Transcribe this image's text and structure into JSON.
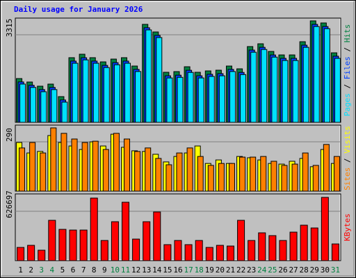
{
  "title": "Daily usage for January 2026",
  "legend_separator": " / ",
  "chart_data": [
    {
      "type": "bar",
      "ylim": [
        0,
        3315
      ],
      "yticks": [
        3315
      ],
      "grid": true,
      "series": [
        {
          "name": "Pages",
          "color": "#00e0ff",
          "values": [
            1250,
            1140,
            1000,
            1070,
            660,
            1930,
            2040,
            1930,
            1790,
            1880,
            1930,
            1660,
            3020,
            2770,
            1450,
            1470,
            1630,
            1450,
            1500,
            1520,
            1660,
            1560,
            2290,
            2380,
            2130,
            2020,
            2020,
            2450,
            3130,
            3060,
            2090
          ]
        },
        {
          "name": "Files",
          "color": "#0040ff",
          "values": [
            1320,
            1210,
            1070,
            1140,
            730,
            2000,
            2110,
            2000,
            1860,
            1950,
            2000,
            1730,
            3090,
            2840,
            1520,
            1540,
            1700,
            1520,
            1570,
            1590,
            1730,
            1630,
            2360,
            2450,
            2200,
            2090,
            2090,
            2520,
            3200,
            3130,
            2160
          ]
        },
        {
          "name": "Hits",
          "color": "#008040",
          "values": [
            1430,
            1317,
            1181,
            1249,
            840,
            2112,
            2225,
            2112,
            1975,
            2066,
            2112,
            1839,
            3201,
            2952,
            1635,
            1657,
            1816,
            1635,
            1680,
            1703,
            1839,
            1748,
            2475,
            2566,
            2316,
            2202,
            2202,
            2634,
            3315,
            3247,
            2271
          ]
        }
      ]
    },
    {
      "type": "bar",
      "ylim": [
        0,
        290
      ],
      "yticks": [
        290
      ],
      "grid": true,
      "series": [
        {
          "name": "Sites",
          "color": "#ff8000",
          "values": [
            198,
            223,
            175,
            290,
            265,
            239,
            223,
            229,
            191,
            265,
            239,
            182,
            198,
            150,
            121,
            175,
            198,
            159,
            118,
            127,
            127,
            156,
            156,
            159,
            137,
            118,
            124,
            175,
            118,
            214,
            159
          ]
        },
        {
          "name": "Visits",
          "color": "#ffff00",
          "values": [
            223,
            175,
            182,
            255,
            223,
            207,
            191,
            226,
            207,
            261,
            201,
            185,
            182,
            169,
            134,
            159,
            175,
            207,
            127,
            143,
            127,
            159,
            153,
            143,
            127,
            124,
            137,
            150,
            112,
            191,
            127
          ]
        }
      ]
    },
    {
      "type": "bar",
      "ylim": [
        0,
        626697
      ],
      "yticks": [
        626697
      ],
      "grid": true,
      "categories": [
        "1",
        "2",
        "3",
        "4",
        "5",
        "6",
        "7",
        "8",
        "9",
        "10",
        "11",
        "12",
        "13",
        "14",
        "15",
        "16",
        "17",
        "18",
        "19",
        "20",
        "21",
        "22",
        "23",
        "24",
        "25",
        "26",
        "27",
        "28",
        "29",
        "30",
        "31"
      ],
      "category_color": "#000000",
      "weekend_categories": [
        "3",
        "4",
        "10",
        "11",
        "17",
        "18",
        "24",
        "25",
        "31"
      ],
      "weekend_color": "#008040",
      "series": [
        {
          "name": "KBytes",
          "color": "#ff0000",
          "values": [
            130853,
            151514,
            103305,
            399446,
            309915,
            303028,
            303028,
            619830,
            199723,
            385672,
            578508,
            213497,
            385672,
            482090,
            158401,
            199723,
            158401,
            199723,
            130853,
            151514,
            144627,
            399446,
            199723,
            275480,
            247932,
            199723,
            282367,
            351237,
            323689,
            626697,
            165288
          ]
        }
      ]
    }
  ]
}
